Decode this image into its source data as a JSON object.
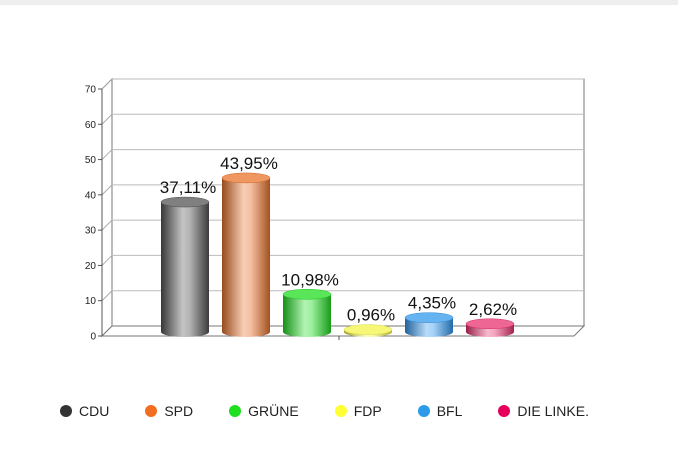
{
  "chart_data": {
    "type": "bar",
    "categories": [
      "CDU",
      "SPD",
      "GRÜNE",
      "FDP",
      "BFL",
      "DIE LINKE."
    ],
    "values": [
      37.11,
      43.95,
      10.98,
      0.96,
      4.35,
      2.62
    ],
    "data_labels": [
      "37,11%",
      "43,95%",
      "10,98%",
      "0,96%",
      "4,35%",
      "2,62%"
    ],
    "colors": [
      "#555555",
      "#e8742c",
      "#22dd22",
      "#f4f44a",
      "#3399ee",
      "#e8336f"
    ],
    "ylim": [
      0,
      70
    ],
    "yticks": [
      "0",
      "10",
      "20",
      "30",
      "40",
      "50",
      "60",
      "70"
    ],
    "grid": true,
    "legend": "bottom",
    "style": "3d-cylinder"
  },
  "legend": {
    "items": [
      {
        "label": "CDU",
        "color": "#333333"
      },
      {
        "label": "SPD",
        "color": "#f26d1f"
      },
      {
        "label": "GRÜNE",
        "color": "#1fe01f"
      },
      {
        "label": "FDP",
        "color": "#ffff33"
      },
      {
        "label": "BFL",
        "color": "#2b9ae8"
      },
      {
        "label": "DIE LINKE.",
        "color": "#e6005c"
      }
    ]
  }
}
